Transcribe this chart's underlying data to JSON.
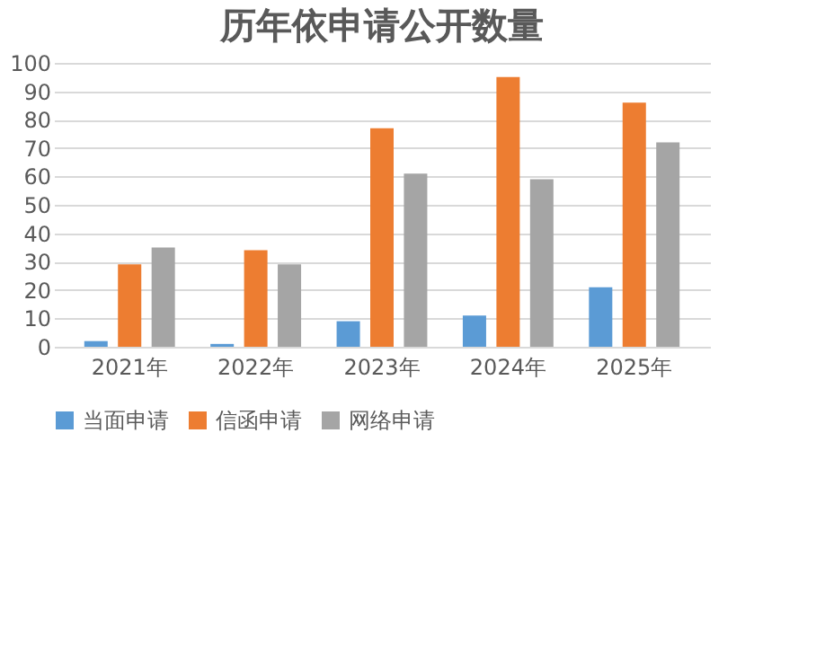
{
  "chart_data": {
    "type": "bar",
    "title": "历年依申请公开数量",
    "categories": [
      "2021年",
      "2022年",
      "2023年",
      "2024年",
      "2025年"
    ],
    "series": [
      {
        "name": "当面申请",
        "color": "#5b9bd5",
        "values": [
          2,
          1,
          9,
          11,
          21
        ]
      },
      {
        "name": "信函申请",
        "color": "#ed7d31",
        "values": [
          29,
          34,
          77,
          95,
          86
        ]
      },
      {
        "name": "网络申请",
        "color": "#a5a5a5",
        "values": [
          35,
          29,
          61,
          59,
          72
        ]
      }
    ],
    "ylim": [
      0,
      100
    ],
    "yticks": [
      0,
      10,
      20,
      30,
      40,
      50,
      60,
      70,
      80,
      90,
      100
    ],
    "grid": "y",
    "legend": "bottom"
  }
}
